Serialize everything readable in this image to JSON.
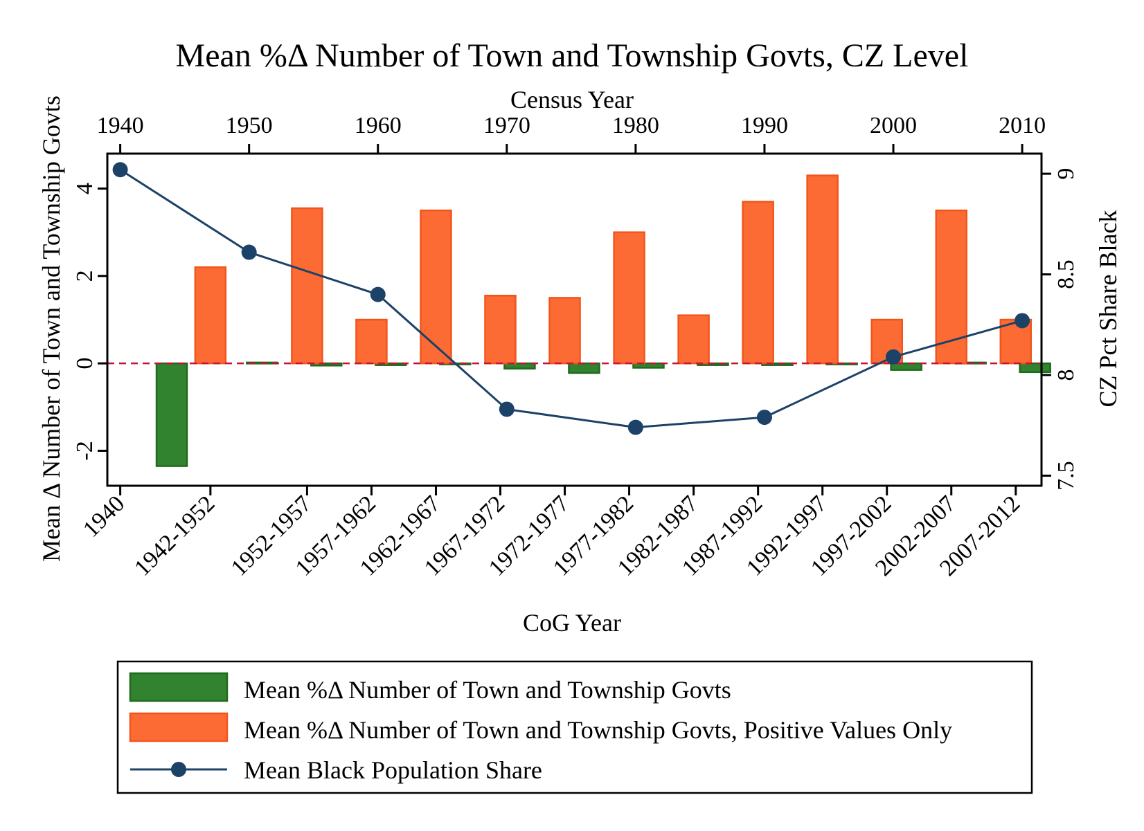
{
  "chart_data": {
    "type": "bar",
    "title": "Mean %Δ Number of Town and Township Govts, CZ Level",
    "xlabel": "CoG Year",
    "x2label": "Census Year",
    "ylabel": "Mean Δ Number of Town and Township Govts",
    "y2label": "CZ Pct Share Black",
    "categories": [
      "1940",
      "1942-1952",
      "1952-1957",
      "1957-1962",
      "1962-1967",
      "1967-1972",
      "1972-1977",
      "1977-1982",
      "1982-1987",
      "1987-1992",
      "1992-1997",
      "1997-2002",
      "2002-2007",
      "2007-2012"
    ],
    "cog_ticks": [
      {
        "label": "1940",
        "year": 1940
      },
      {
        "label": "1942-1952",
        "year": 1947
      },
      {
        "label": "1952-1957",
        "year": 1954.5
      },
      {
        "label": "1957-1962",
        "year": 1959.5
      },
      {
        "label": "1962-1967",
        "year": 1964.5
      },
      {
        "label": "1967-1972",
        "year": 1969.5
      },
      {
        "label": "1972-1977",
        "year": 1974.5
      },
      {
        "label": "1977-1982",
        "year": 1979.5
      },
      {
        "label": "1982-1987",
        "year": 1984.5
      },
      {
        "label": "1987-1992",
        "year": 1989.5
      },
      {
        "label": "1992-1997",
        "year": 1994.5
      },
      {
        "label": "1997-2002",
        "year": 1999.5
      },
      {
        "label": "2002-2007",
        "year": 2004.5
      },
      {
        "label": "2007-2012",
        "year": 2009.5
      }
    ],
    "census_ticks": [
      1940,
      1950,
      1960,
      1970,
      1980,
      1990,
      2000,
      2010
    ],
    "xlim": [
      1939,
      2011.5
    ],
    "ylim": [
      -2.8,
      4.8
    ],
    "y_ticks": [
      -2,
      0,
      2,
      4
    ],
    "y2lim": [
      7.45,
      9.1
    ],
    "y2_ticks": [
      7.5,
      8,
      8.5,
      9
    ],
    "reference_line_y": 0,
    "series": [
      {
        "name": "Mean %Δ Number of Town and Township Govts",
        "type": "bar",
        "axis": "left",
        "color": "#31832f",
        "edge_color": "#1e6b1c",
        "points": [
          {
            "year": 1944,
            "value": -2.35
          },
          {
            "year": 1951,
            "value": 0.02
          },
          {
            "year": 1956,
            "value": -0.05
          },
          {
            "year": 1961,
            "value": -0.04
          },
          {
            "year": 1966,
            "value": 0.0
          },
          {
            "year": 1971,
            "value": -0.12
          },
          {
            "year": 1976,
            "value": -0.22
          },
          {
            "year": 1981,
            "value": -0.1
          },
          {
            "year": 1986,
            "value": -0.04
          },
          {
            "year": 1991,
            "value": -0.04
          },
          {
            "year": 1996,
            "value": -0.02
          },
          {
            "year": 2001,
            "value": -0.15
          },
          {
            "year": 2006,
            "value": 0.02
          },
          {
            "year": 2011,
            "value": -0.2
          }
        ]
      },
      {
        "name": "Mean %Δ Number of Town and Township Govts, Positive Values Only",
        "type": "bar",
        "axis": "left",
        "color": "#fd6b34",
        "edge_color": "#f2551b",
        "points": [
          {
            "year": 1947,
            "value": 2.2
          },
          {
            "year": 1954.5,
            "value": 3.55
          },
          {
            "year": 1959.5,
            "value": 1.0
          },
          {
            "year": 1964.5,
            "value": 3.5
          },
          {
            "year": 1969.5,
            "value": 1.55
          },
          {
            "year": 1974.5,
            "value": 1.5
          },
          {
            "year": 1979.5,
            "value": 3.0
          },
          {
            "year": 1984.5,
            "value": 1.1
          },
          {
            "year": 1989.5,
            "value": 3.7
          },
          {
            "year": 1994.5,
            "value": 4.3
          },
          {
            "year": 1999.5,
            "value": 1.0
          },
          {
            "year": 2004.5,
            "value": 3.5
          },
          {
            "year": 2009.5,
            "value": 1.0
          }
        ]
      },
      {
        "name": "Mean Black Population Share",
        "type": "line",
        "axis": "right",
        "color": "#1c4268",
        "points": [
          {
            "year": 1940,
            "value": 9.02
          },
          {
            "year": 1950,
            "value": 8.61
          },
          {
            "year": 1960,
            "value": 8.4
          },
          {
            "year": 1970,
            "value": 7.83
          },
          {
            "year": 1980,
            "value": 7.74
          },
          {
            "year": 1990,
            "value": 7.79
          },
          {
            "year": 2000,
            "value": 8.09
          },
          {
            "year": 2010,
            "value": 8.27
          }
        ]
      }
    ],
    "reference_color": "#c4143c",
    "legend_position": "bottom"
  }
}
